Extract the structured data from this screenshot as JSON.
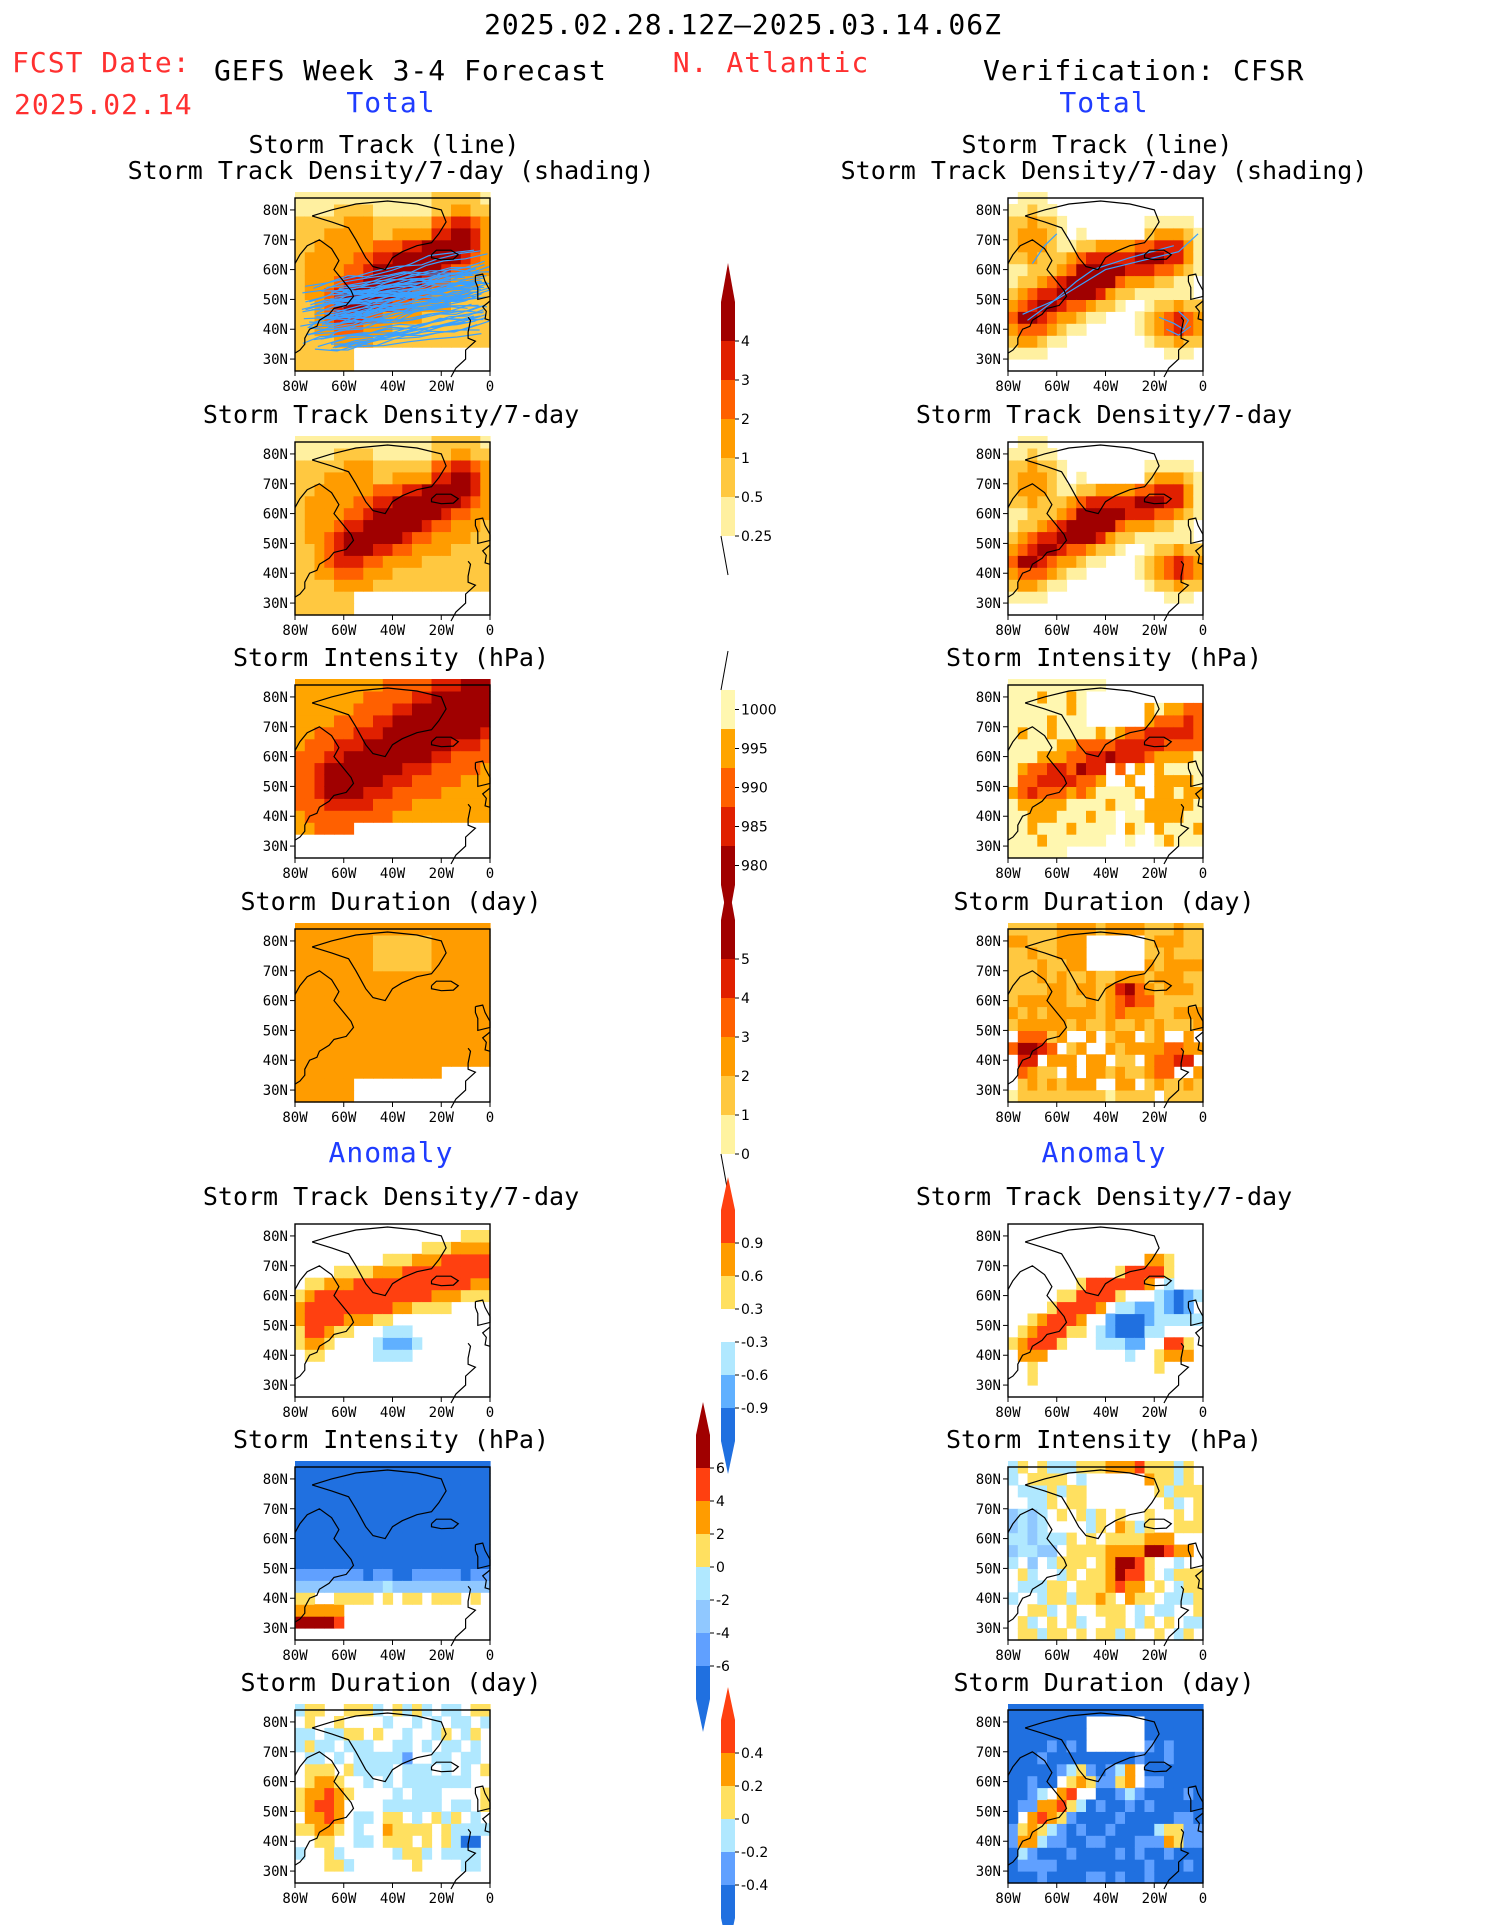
{
  "header": {
    "period": "2025.02.28.12Z–2025.03.14.06Z",
    "fcst_label": "FCST Date:",
    "fcst_date": "2025.02.14",
    "left_title": "GEFS Week 3-4 Forecast",
    "region": "N. Atlantic",
    "right_title": "Verification: CFSR",
    "total_label": "Total",
    "anomaly_label": "Anomaly"
  },
  "panel_titles": {
    "track_line": "Storm Track (line)",
    "track_shading": "Storm Track Density/7-day (shading)",
    "density": "Storm Track Density/7-day",
    "intensity": "Storm Intensity (hPa)",
    "duration": "Storm Duration (day)"
  },
  "map_axes": {
    "lat_ticks": [
      "80N",
      "70N",
      "60N",
      "50N",
      "40N",
      "30N"
    ],
    "lon_ticks": [
      "80W",
      "60W",
      "40W",
      "20W",
      "0"
    ]
  },
  "chart_data": [
    {
      "type": "heatmap",
      "panel": "forecast-total-track",
      "title": "Storm Track (line) / Storm Track Density/7-day (shading)",
      "colorbar": "density"
    },
    {
      "type": "heatmap",
      "panel": "verification-total-track",
      "title": "Storm Track (line) / Storm Track Density/7-day (shading)",
      "colorbar": "density"
    },
    {
      "type": "heatmap",
      "panel": "forecast-total-density",
      "title": "Storm Track Density/7-day",
      "colorbar": "density"
    },
    {
      "type": "heatmap",
      "panel": "verification-total-density",
      "title": "Storm Track Density/7-day",
      "colorbar": "density"
    },
    {
      "type": "heatmap",
      "panel": "forecast-total-intensity",
      "title": "Storm Intensity (hPa)",
      "colorbar": "intensity"
    },
    {
      "type": "heatmap",
      "panel": "verification-total-intensity",
      "title": "Storm Intensity (hPa)",
      "colorbar": "intensity"
    },
    {
      "type": "heatmap",
      "panel": "forecast-total-duration",
      "title": "Storm Duration (day)",
      "colorbar": "duration"
    },
    {
      "type": "heatmap",
      "panel": "verification-total-duration",
      "title": "Storm Duration (day)",
      "colorbar": "duration"
    },
    {
      "type": "heatmap",
      "panel": "forecast-anom-density",
      "title": "Storm Track Density/7-day",
      "colorbar": "density_anomaly"
    },
    {
      "type": "heatmap",
      "panel": "verification-anom-density",
      "title": "Storm Track Density/7-day",
      "colorbar": "density_anomaly"
    },
    {
      "type": "heatmap",
      "panel": "forecast-anom-intensity",
      "title": "Storm Intensity (hPa)",
      "colorbar": "intensity_anomaly"
    },
    {
      "type": "heatmap",
      "panel": "verification-anom-intensity",
      "title": "Storm Intensity (hPa)",
      "colorbar": "intensity_anomaly"
    },
    {
      "type": "heatmap",
      "panel": "forecast-anom-duration",
      "title": "Storm Duration (day)",
      "colorbar": "duration_anomaly"
    },
    {
      "type": "heatmap",
      "panel": "verification-anom-duration",
      "title": "Storm Duration (day)",
      "colorbar": "duration_anomaly"
    }
  ],
  "colorbars": {
    "density": {
      "labels": [
        "4",
        "3",
        "2",
        "1",
        "0.5",
        "0.25"
      ],
      "colors": [
        "#a00000",
        "#e02000",
        "#ff6000",
        "#ff9c00",
        "#ffc840",
        "#fff0a0"
      ]
    },
    "intensity": {
      "labels": [
        "1000",
        "995",
        "990",
        "985",
        "980"
      ],
      "colors": [
        "#fff7b0",
        "#ffa500",
        "#ff6000",
        "#e02000",
        "#a00000"
      ]
    },
    "duration": {
      "labels": [
        "5",
        "4",
        "3",
        "2",
        "1",
        "0"
      ],
      "colors": [
        "#a00000",
        "#e02000",
        "#ff6000",
        "#ff9c00",
        "#ffc840",
        "#fff3a0"
      ]
    },
    "density_anomaly": {
      "labels": [
        "0.9",
        "0.6",
        "0.3",
        "-0.3",
        "-0.6",
        "-0.9"
      ],
      "colors": [
        "#ff4010",
        "#ff9c00",
        "#ffe060",
        "#ffffff",
        "#b0e8ff",
        "#60b0ff",
        "#2070e0"
      ]
    },
    "intensity_anomaly": {
      "labels": [
        "6",
        "4",
        "2",
        "0",
        "-2",
        "-4",
        "-6"
      ],
      "colors": [
        "#a00000",
        "#ff4010",
        "#ff9c00",
        "#ffe060",
        "#b0e8ff",
        "#90c8ff",
        "#60a0ff",
        "#2070e0"
      ]
    },
    "duration_anomaly": {
      "labels": [
        "0.4",
        "0.2",
        "0",
        "-0.2",
        "-0.4"
      ],
      "colors": [
        "#ff4010",
        "#ff9c00",
        "#ffe060",
        "#b0e8ff",
        "#60a0ff",
        "#2070e0"
      ]
    }
  },
  "colors": {
    "header_red": "#ff3030",
    "header_blue": "#1f3cff",
    "track_line": "#3aa0ff",
    "coast": "#000000"
  }
}
